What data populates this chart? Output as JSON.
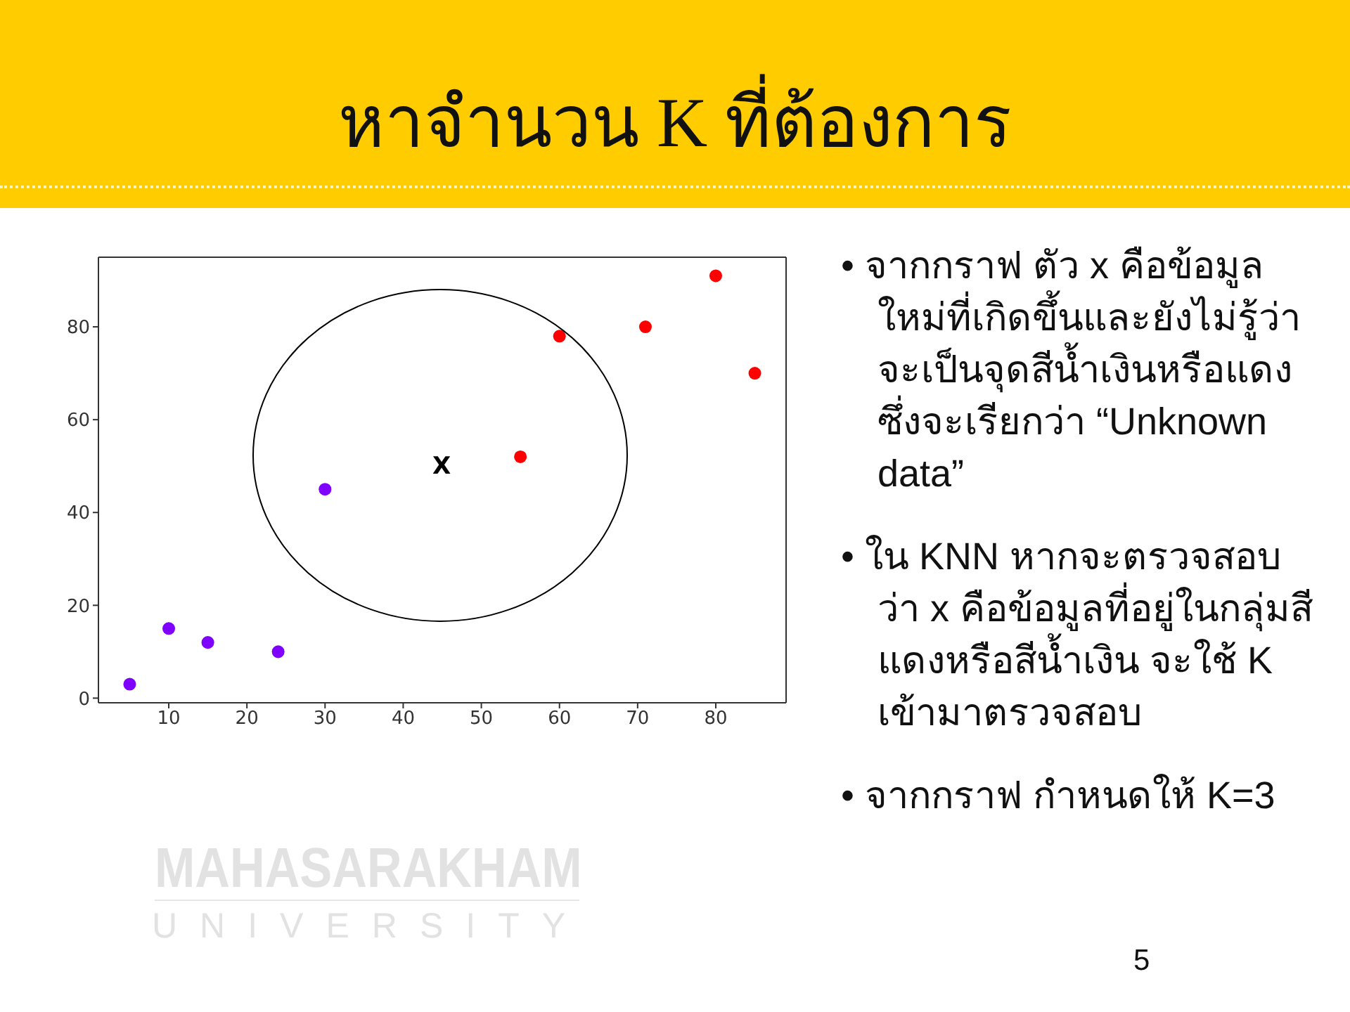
{
  "chart_data": {
    "type": "scatter",
    "title": "หาจำนวน K ที่ต้องการ",
    "series": [
      {
        "color": "#8000ff",
        "x": [
          5,
          10,
          15,
          24,
          30
        ],
        "values": [
          3,
          15,
          12,
          10,
          45
        ]
      },
      {
        "color": "#ff0000",
        "x": [
          55,
          60,
          71,
          80,
          85
        ],
        "values": [
          52,
          78,
          80,
          91,
          70
        ]
      }
    ],
    "xlim": [
      1,
      89
    ],
    "ylim": [
      -1,
      95
    ],
    "xticks": [
      10,
      20,
      30,
      40,
      50,
      60,
      70,
      80
    ],
    "yticks": [
      0,
      20,
      40,
      60,
      80
    ],
    "marker": "circle",
    "annotations": [
      "X",
      "• จากกราฟ ตัว x คือข้อมูลใหม่ที่เกิดขึ้นและยังไม่รู้ว่าจะเป็นจุดสีน้ำเงินหรือแดงซึ่งจะเรียกว่า “Unknown data”",
      "• ใน KNN หากจะตรวจสอบว่า x คือข้อมูลที่อยู่ในกลุ่มสีแดงหรือสีน้ำเงิน จะใช้ K เข้ามาตรวจสอบ",
      "• จากกราฟ กำหนดให้ K=3",
      "MAHASARAKHAM",
      "UNIVERSITY",
      "5"
    ]
  }
}
